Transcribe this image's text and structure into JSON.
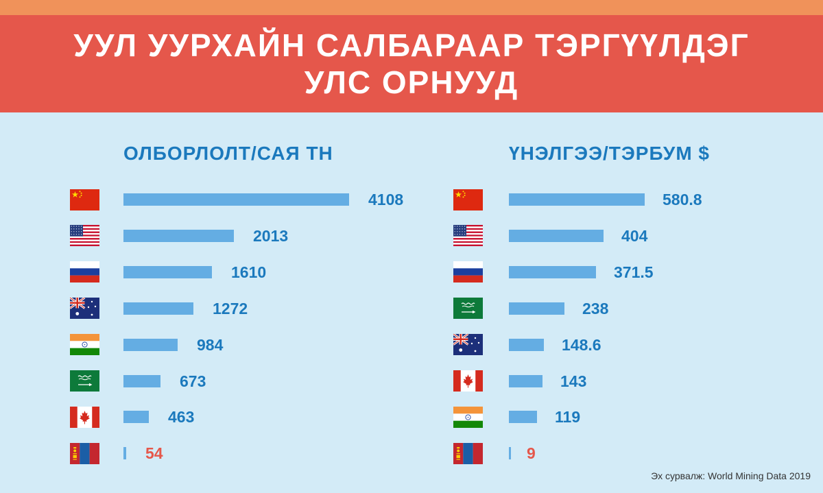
{
  "header": {
    "title_line1": "УУЛ УУРХАЙН САЛБАРААР ТЭРГҮҮЛДЭГ",
    "title_line2": "УЛС ОРНУУД"
  },
  "colors": {
    "top_strip": "#f0925a",
    "banner": "#e5574b",
    "background": "#d3ebf7",
    "bar": "#64ade3",
    "value_text": "#1b79bd",
    "highlight_text": "#e5574b"
  },
  "chart_data": [
    {
      "type": "bar",
      "orientation": "horizontal",
      "title": "ОЛБОРЛОЛТ/САЯ ТН",
      "categories": [
        "China",
        "USA",
        "Russia",
        "Australia",
        "India",
        "Saudi Arabia",
        "Canada",
        "Mongolia"
      ],
      "flags": [
        "china-flag",
        "usa-flag",
        "russia-flag",
        "australia-flag",
        "india-flag",
        "saudi-flag",
        "canada-flag",
        "mongolia-flag"
      ],
      "values": [
        4108,
        2013,
        1610,
        1272,
        984,
        673,
        463,
        54
      ],
      "labels": [
        "4108",
        "2013",
        "1610",
        "1272",
        "984",
        "673",
        "463",
        "54"
      ],
      "highlight_index": 7,
      "xlim": [
        0,
        4108
      ],
      "grid": false,
      "legend": "none"
    },
    {
      "type": "bar",
      "orientation": "horizontal",
      "title": "ҮНЭЛГЭЭ/ТЭРБУМ $",
      "categories": [
        "China",
        "USA",
        "Russia",
        "Saudi Arabia",
        "Australia",
        "Canada",
        "India",
        "Mongolia"
      ],
      "flags": [
        "china-flag",
        "usa-flag",
        "russia-flag",
        "saudi-flag",
        "australia-flag",
        "canada-flag",
        "india-flag",
        "mongolia-flag"
      ],
      "values": [
        580.8,
        404,
        371.5,
        238,
        148.6,
        143,
        119,
        9
      ],
      "labels": [
        "580.8",
        "404",
        "371.5",
        "238",
        "148.6",
        "143",
        "119",
        "9"
      ],
      "highlight_index": 7,
      "xlim": [
        0,
        580.8
      ],
      "grid": false,
      "legend": "none"
    }
  ],
  "footer": {
    "source": "Эх сурвалж: World Mining Data 2019"
  }
}
